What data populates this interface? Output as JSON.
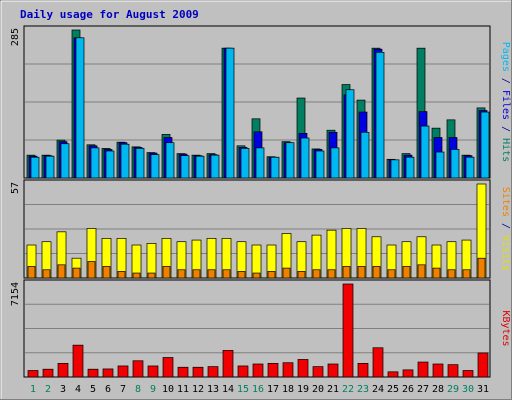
{
  "chart_data": {
    "type": "bar",
    "title": "Daily usage for August 2009",
    "days": [
      "1",
      "2",
      "3",
      "4",
      "5",
      "6",
      "7",
      "8",
      "9",
      "10",
      "11",
      "12",
      "13",
      "14",
      "15",
      "16",
      "17",
      "18",
      "19",
      "20",
      "21",
      "22",
      "23",
      "24",
      "25",
      "26",
      "27",
      "28",
      "29",
      "30",
      "31"
    ],
    "weekend_days": [
      "1",
      "2",
      "8",
      "9",
      "15",
      "16",
      "22",
      "23",
      "29",
      "30"
    ],
    "panels": [
      {
        "id": "top",
        "max_label": "285",
        "ylim": [
          0,
          285
        ],
        "right_labels": [
          {
            "text": "Pages",
            "color": "#00b8f0"
          },
          {
            "text": " / ",
            "color": "#0000a0"
          },
          {
            "text": "Files",
            "color": "#0000e0"
          },
          {
            "text": " / ",
            "color": "#0000a0"
          },
          {
            "text": "Hits",
            "color": "#008060"
          }
        ],
        "series": [
          {
            "name": "Hits",
            "color": "#008060",
            "values": [
              44,
              44,
              73,
              285,
              64,
              57,
              69,
              60,
              49,
              84,
              47,
              44,
              47,
              250,
              62,
              114,
              41,
              70,
              154,
              56,
              92,
              180,
              150,
              250,
              36,
              47,
              250,
              96,
              112,
              44,
              135
            ]
          },
          {
            "name": "Files",
            "color": "#0000e0",
            "values": [
              42,
              43,
              70,
              270,
              62,
              55,
              68,
              59,
              48,
              78,
              46,
              43,
              45,
              250,
              59,
              89,
              40,
              68,
              86,
              55,
              88,
              160,
              127,
              248,
              35,
              44,
              128,
              78,
              78,
              43,
              130
            ]
          },
          {
            "name": "Pages",
            "color": "#00b8f0",
            "values": [
              40,
              42,
              66,
              270,
              58,
              52,
              65,
              57,
              45,
              68,
              43,
              42,
              44,
              250,
              57,
              58,
              40,
              68,
              77,
              52,
              58,
              170,
              88,
              242,
              35,
              40,
              100,
              50,
              55,
              40,
              127
            ]
          }
        ]
      },
      {
        "id": "middle",
        "max_label": "57",
        "ylim": [
          0,
          57
        ],
        "right_labels": [
          {
            "text": "Sites",
            "color": "#f08000"
          },
          {
            "text": " / ",
            "color": "#0000a0"
          },
          {
            "text": "Visits",
            "color": "#e0e000"
          }
        ],
        "series": [
          {
            "name": "Visits",
            "color": "#ffff00",
            "values": [
              20,
              22,
              28,
              12,
              30,
              24,
              24,
              20,
              21,
              24,
              22,
              23,
              24,
              24,
              22,
              20,
              20,
              27,
              22,
              26,
              29,
              30,
              30,
              25,
              20,
              22,
              25,
              20,
              22,
              23,
              57
            ]
          },
          {
            "name": "Sites",
            "color": "#f08000",
            "values": [
              7,
              5,
              8,
              6,
              10,
              7,
              4,
              3,
              3,
              7,
              5,
              5,
              5,
              5,
              4,
              3,
              4,
              6,
              4,
              5,
              5,
              7,
              7,
              7,
              5,
              7,
              8,
              6,
              5,
              5,
              12
            ]
          }
        ]
      },
      {
        "id": "bottom",
        "max_label": "7154",
        "ylim": [
          0,
          7154
        ],
        "right_labels": [
          {
            "text": "KBytes",
            "color": "#e00000"
          }
        ],
        "series": [
          {
            "name": "KBytes",
            "color": "#f00000",
            "values": [
              500,
              600,
              1050,
              2450,
              600,
              620,
              850,
              1250,
              850,
              1500,
              750,
              750,
              800,
              2050,
              850,
              1000,
              1050,
              1100,
              1350,
              800,
              1000,
              7154,
              1050,
              2250,
              400,
              550,
              1150,
              1000,
              950,
              500,
              1850
            ]
          }
        ]
      }
    ]
  }
}
